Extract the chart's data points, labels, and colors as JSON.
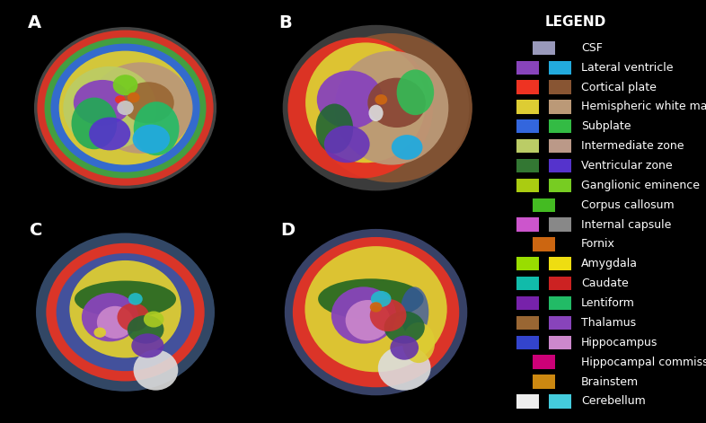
{
  "background_color": "#000000",
  "title": "LEGEND",
  "title_color": "#ffffff",
  "title_fontsize": 11,
  "title_fontweight": "bold",
  "label_fontsize": 9,
  "label_color": "#ffffff",
  "panel_label_color": "#ffffff",
  "panel_label_fontsize": 14,
  "panel_label_fontweight": "bold",
  "legend_entries": [
    {
      "label": "CSF",
      "colors": [
        "#9999bb"
      ]
    },
    {
      "label": "Lateral ventricle",
      "colors": [
        "#8844bb",
        "#22aadd"
      ]
    },
    {
      "label": "Cortical plate",
      "colors": [
        "#ee3322",
        "#885533"
      ]
    },
    {
      "label": "Hemispheric white matter",
      "colors": [
        "#ddcc33",
        "#bb9977"
      ]
    },
    {
      "label": "Subplate",
      "colors": [
        "#3366dd",
        "#33bb44"
      ]
    },
    {
      "label": "Intermediate zone",
      "colors": [
        "#bbcc66",
        "#bb9988"
      ]
    },
    {
      "label": "Ventricular zone",
      "colors": [
        "#337733",
        "#5533cc"
      ]
    },
    {
      "label": "Ganglionic eminence",
      "colors": [
        "#aacc11",
        "#77cc22"
      ]
    },
    {
      "label": "Corpus callosum",
      "colors": [
        "#44bb22"
      ]
    },
    {
      "label": "Internal capsule",
      "colors": [
        "#cc55cc",
        "#888888"
      ]
    },
    {
      "label": "Fornix",
      "colors": [
        "#cc6611"
      ]
    },
    {
      "label": "Amygdala",
      "colors": [
        "#99dd00",
        "#eedd11"
      ]
    },
    {
      "label": "Caudate",
      "colors": [
        "#11bbaa",
        "#cc2222"
      ]
    },
    {
      "label": "Lentiform",
      "colors": [
        "#7722aa",
        "#22bb66"
      ]
    },
    {
      "label": "Thalamus",
      "colors": [
        "#996633",
        "#8844bb"
      ]
    },
    {
      "label": "Hippocampus",
      "colors": [
        "#3344cc",
        "#cc88cc"
      ]
    },
    {
      "label": "Hippocampal commissure",
      "colors": [
        "#cc0077"
      ]
    },
    {
      "label": "Brainstem",
      "colors": [
        "#cc8811"
      ]
    },
    {
      "label": "Cerebellum",
      "colors": [
        "#eeeeee",
        "#44ccdd"
      ]
    }
  ],
  "colors": {
    "csf": "#9999bb",
    "lat_vent_l": "#8844bb",
    "lat_vent_r": "#22aadd",
    "ctx_l": "#ee3322",
    "ctx_r": "#885533",
    "hwm_l": "#ddcc33",
    "hwm_r": "#bb9977",
    "subplate_l": "#3366dd",
    "subplate_r": "#33bb44",
    "iz_l": "#bbcc66",
    "iz_r": "#bb9988",
    "vz_l": "#337733",
    "vz_r": "#5533cc",
    "ge_l": "#aacc11",
    "ge_r": "#77cc22",
    "cc": "#44bb22",
    "ic_l": "#cc55cc",
    "ic_r": "#888888",
    "fornix": "#cc6611",
    "amyg_l": "#99dd00",
    "amyg_r": "#eedd11",
    "caud_l": "#11bbaa",
    "caud_r": "#cc2222",
    "lent_l": "#7722aa",
    "lent_r": "#22bb66",
    "thal_l": "#996633",
    "thal_r": "#8844bb",
    "hipp_l": "#3344cc",
    "hipp_r": "#cc88cc",
    "hc": "#cc0077",
    "bs": "#cc8811",
    "cereb": "#eeeeee",
    "cereb2": "#44ccdd",
    "blue_outer": "#4466aa",
    "red_cortex": "#ee3322",
    "yellow_wm": "#eeee44",
    "green_dark": "#226622",
    "purple_deep": "#7722aa",
    "pink_hipp": "#cc88cc",
    "red_thal": "#cc3333"
  }
}
